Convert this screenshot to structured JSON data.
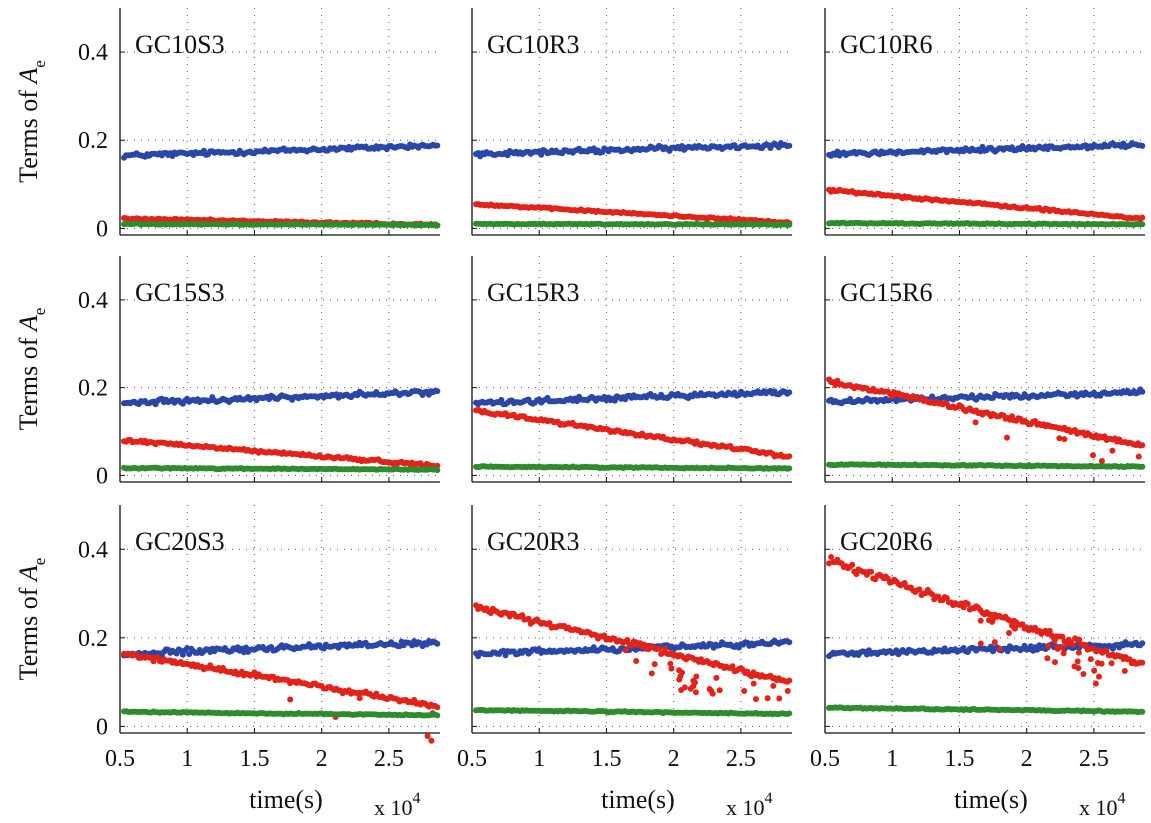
{
  "figure": {
    "ylabel_main": "Terms of ",
    "ylabel_var": "A",
    "ylabel_sub": "e",
    "xlabel": "time(s)",
    "x_exponent_base": "x 10",
    "x_exponent_power": "4"
  },
  "colors": {
    "blue": "#2a47a8",
    "red": "#e2231a",
    "green": "#2e8b2e"
  },
  "chart_data": [
    {
      "type": "scatter",
      "title": "GC10S3",
      "xlabel": "time(s)",
      "ylabel": "Terms of A_e",
      "x_scale": "x 10^4",
      "xlim": [
        0.5,
        2.88
      ],
      "ylim": [
        -0.015,
        0.5
      ],
      "xticks": [
        0.5,
        1,
        1.5,
        2,
        2.5
      ],
      "yticks": [
        0,
        0.2,
        0.4
      ],
      "grid": "dotted",
      "series": [
        {
          "color": "blue",
          "start": 0.165,
          "end": 0.188,
          "noise": 0.008,
          "outliers": 0
        },
        {
          "color": "red",
          "start": 0.022,
          "end": 0.008,
          "noise": 0.003,
          "outliers": 0
        },
        {
          "color": "green",
          "start": 0.01,
          "end": 0.008,
          "noise": 0.002,
          "outliers": 0
        }
      ]
    },
    {
      "type": "scatter",
      "title": "GC10R3",
      "xlabel": "time(s)",
      "ylabel": "Terms of A_e",
      "x_scale": "x 10^4",
      "xlim": [
        0.5,
        2.88
      ],
      "ylim": [
        -0.015,
        0.5
      ],
      "xticks": [
        0.5,
        1,
        1.5,
        2,
        2.5
      ],
      "yticks": [
        0,
        0.2,
        0.4
      ],
      "grid": "dotted",
      "series": [
        {
          "color": "blue",
          "start": 0.168,
          "end": 0.19,
          "noise": 0.008,
          "outliers": 0
        },
        {
          "color": "red",
          "start": 0.055,
          "end": 0.013,
          "noise": 0.003,
          "outliers": 0
        },
        {
          "color": "green",
          "start": 0.01,
          "end": 0.009,
          "noise": 0.002,
          "outliers": 0
        }
      ]
    },
    {
      "type": "scatter",
      "title": "GC10R6",
      "xlabel": "time(s)",
      "ylabel": "Terms of A_e",
      "x_scale": "x 10^4",
      "xlim": [
        0.5,
        2.88
      ],
      "ylim": [
        -0.015,
        0.5
      ],
      "xticks": [
        0.5,
        1,
        1.5,
        2,
        2.5
      ],
      "yticks": [
        0,
        0.2,
        0.4
      ],
      "grid": "dotted",
      "series": [
        {
          "color": "blue",
          "start": 0.168,
          "end": 0.19,
          "noise": 0.008,
          "outliers": 0
        },
        {
          "color": "red",
          "start": 0.087,
          "end": 0.022,
          "noise": 0.004,
          "outliers": 0
        },
        {
          "color": "green",
          "start": 0.012,
          "end": 0.009,
          "noise": 0.002,
          "outliers": 0
        }
      ]
    },
    {
      "type": "scatter",
      "title": "GC15S3",
      "xlabel": "time(s)",
      "ylabel": "Terms of A_e",
      "x_scale": "x 10^4",
      "xlim": [
        0.5,
        2.88
      ],
      "ylim": [
        -0.015,
        0.5
      ],
      "xticks": [
        0.5,
        1,
        1.5,
        2,
        2.5
      ],
      "yticks": [
        0,
        0.2,
        0.4
      ],
      "grid": "dotted",
      "series": [
        {
          "color": "blue",
          "start": 0.165,
          "end": 0.19,
          "noise": 0.008,
          "outliers": 0
        },
        {
          "color": "red",
          "start": 0.08,
          "end": 0.022,
          "noise": 0.005,
          "outliers": 0
        },
        {
          "color": "green",
          "start": 0.017,
          "end": 0.013,
          "noise": 0.002,
          "outliers": 0
        }
      ]
    },
    {
      "type": "scatter",
      "title": "GC15R3",
      "xlabel": "time(s)",
      "ylabel": "Terms of A_e",
      "x_scale": "x 10^4",
      "xlim": [
        0.5,
        2.88
      ],
      "ylim": [
        -0.015,
        0.5
      ],
      "xticks": [
        0.5,
        1,
        1.5,
        2,
        2.5
      ],
      "yticks": [
        0,
        0.2,
        0.4
      ],
      "grid": "dotted",
      "series": [
        {
          "color": "blue",
          "start": 0.165,
          "end": 0.19,
          "noise": 0.008,
          "outliers": 0
        },
        {
          "color": "red",
          "start": 0.148,
          "end": 0.043,
          "noise": 0.006,
          "outliers": 0
        },
        {
          "color": "green",
          "start": 0.02,
          "end": 0.016,
          "noise": 0.002,
          "outliers": 0
        }
      ]
    },
    {
      "type": "scatter",
      "title": "GC15R6",
      "xlabel": "time(s)",
      "ylabel": "Terms of A_e",
      "x_scale": "x 10^4",
      "xlim": [
        0.5,
        2.88
      ],
      "ylim": [
        -0.015,
        0.5
      ],
      "xticks": [
        0.5,
        1,
        1.5,
        2,
        2.5
      ],
      "yticks": [
        0,
        0.2,
        0.4
      ],
      "grid": "dotted",
      "series": [
        {
          "color": "blue",
          "start": 0.168,
          "end": 0.19,
          "noise": 0.008,
          "outliers": 0
        },
        {
          "color": "red",
          "start": 0.215,
          "end": 0.068,
          "noise": 0.008,
          "outliers": 8
        },
        {
          "color": "green",
          "start": 0.025,
          "end": 0.02,
          "noise": 0.002,
          "outliers": 0
        }
      ]
    },
    {
      "type": "scatter",
      "title": "GC20S3",
      "xlabel": "time(s)",
      "ylabel": "Terms of A_e",
      "x_scale": "x 10^4",
      "xlim": [
        0.5,
        2.88
      ],
      "ylim": [
        -0.015,
        0.5
      ],
      "xticks": [
        0.5,
        1,
        1.5,
        2,
        2.5
      ],
      "yticks": [
        0,
        0.2,
        0.4
      ],
      "grid": "dotted",
      "series": [
        {
          "color": "blue",
          "start": 0.163,
          "end": 0.19,
          "noise": 0.009,
          "outliers": 0
        },
        {
          "color": "red",
          "start": 0.165,
          "end": 0.045,
          "noise": 0.008,
          "outliers": 6
        },
        {
          "color": "green",
          "start": 0.033,
          "end": 0.025,
          "noise": 0.002,
          "outliers": 0
        }
      ]
    },
    {
      "type": "scatter",
      "title": "GC20R3",
      "xlabel": "time(s)",
      "ylabel": "Terms of A_e",
      "x_scale": "x 10^4",
      "xlim": [
        0.5,
        2.88
      ],
      "ylim": [
        -0.015,
        0.5
      ],
      "xticks": [
        0.5,
        1,
        1.5,
        2,
        2.5
      ],
      "yticks": [
        0,
        0.2,
        0.4
      ],
      "grid": "dotted",
      "series": [
        {
          "color": "blue",
          "start": 0.163,
          "end": 0.19,
          "noise": 0.009,
          "outliers": 0
        },
        {
          "color": "red",
          "start": 0.27,
          "end": 0.1,
          "noise": 0.01,
          "outliers": 30
        },
        {
          "color": "green",
          "start": 0.037,
          "end": 0.028,
          "noise": 0.002,
          "outliers": 0
        }
      ]
    },
    {
      "type": "scatter",
      "title": "GC20R6",
      "xlabel": "time(s)",
      "ylabel": "Terms of A_e",
      "x_scale": "x 10^4",
      "xlim": [
        0.5,
        2.88
      ],
      "ylim": [
        -0.015,
        0.5
      ],
      "xticks": [
        0.5,
        1,
        1.5,
        2,
        2.5
      ],
      "yticks": [
        0,
        0.2,
        0.4
      ],
      "grid": "dotted",
      "series": [
        {
          "color": "blue",
          "start": 0.163,
          "end": 0.185,
          "noise": 0.009,
          "outliers": 0
        },
        {
          "color": "red",
          "start": 0.375,
          "end": 0.14,
          "noise": 0.012,
          "outliers": 30
        },
        {
          "color": "green",
          "start": 0.042,
          "end": 0.033,
          "noise": 0.002,
          "outliers": 0
        }
      ]
    }
  ]
}
